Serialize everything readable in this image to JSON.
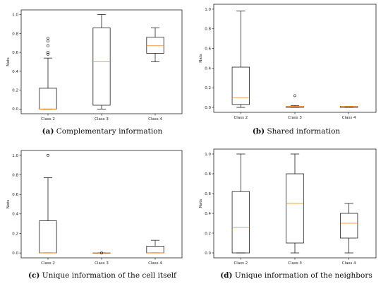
{
  "chart_data": [
    {
      "type": "box",
      "panel": "a",
      "caption_letter": "(a)",
      "caption_text": "Complementary information",
      "ylabel": "Nats",
      "ylim": [
        -0.05,
        1.05
      ],
      "yticks": [
        0.0,
        0.2,
        0.4,
        0.6,
        0.8,
        1.0
      ],
      "ytick_labels": [
        "0.0",
        "0.2",
        "0.4",
        "0.6",
        "0.8",
        "1.0"
      ],
      "categories": [
        "Class 2",
        "Class 3",
        "Class 4"
      ],
      "boxes": [
        {
          "whislo": 0.0,
          "q1": 0.0,
          "med": 0.0,
          "q3": 0.22,
          "whishi": 0.54,
          "fliers": [
            0.58,
            0.6,
            0.67,
            0.72,
            0.75
          ]
        },
        {
          "whislo": 0.0,
          "q1": 0.04,
          "med": 0.5,
          "q3": 0.86,
          "whishi": 1.0,
          "fliers": []
        },
        {
          "whislo": 0.5,
          "q1": 0.59,
          "med": 0.67,
          "q3": 0.76,
          "whishi": 0.86,
          "fliers": []
        }
      ]
    },
    {
      "type": "box",
      "panel": "b",
      "caption_letter": "(b)",
      "caption_text": "Shared information",
      "ylabel": "Nats",
      "ylim": [
        -0.05,
        1.05
      ],
      "yticks": [
        0.0,
        0.2,
        0.4,
        0.6,
        0.8,
        1.0
      ],
      "ytick_labels": [
        "0.0",
        "0.2",
        "0.4",
        "0.6",
        "0.8",
        "1.0"
      ],
      "categories": [
        "Class 2",
        "Class 3",
        "Class 4"
      ],
      "boxes": [
        {
          "whislo": 0.0,
          "q1": 0.03,
          "med": 0.1,
          "q3": 0.41,
          "whishi": 0.98,
          "fliers": []
        },
        {
          "whislo": 0.0,
          "q1": 0.0,
          "med": 0.01,
          "q3": 0.01,
          "whishi": 0.02,
          "fliers": [
            0.12
          ]
        },
        {
          "whislo": 0.0,
          "q1": 0.0,
          "med": 0.01,
          "q3": 0.01,
          "whishi": 0.01,
          "fliers": []
        }
      ]
    },
    {
      "type": "box",
      "panel": "c",
      "caption_letter": "(c)",
      "caption_text": "Unique information of the cell itself",
      "ylabel": "Nats",
      "ylim": [
        -0.05,
        1.05
      ],
      "yticks": [
        0.0,
        0.2,
        0.4,
        0.6,
        0.8,
        1.0
      ],
      "ytick_labels": [
        "0.0",
        "0.2",
        "0.4",
        "0.6",
        "0.8",
        "1.0"
      ],
      "categories": [
        "Class 2",
        "Class 3",
        "Class 4"
      ],
      "boxes": [
        {
          "whislo": 0.0,
          "q1": 0.0,
          "med": 0.0,
          "q3": 0.33,
          "whishi": 0.77,
          "fliers": [
            1.0
          ]
        },
        {
          "whislo": 0.0,
          "q1": 0.0,
          "med": 0.0,
          "q3": 0.0,
          "whishi": 0.0,
          "fliers": [
            0.0
          ]
        },
        {
          "whislo": 0.0,
          "q1": 0.0,
          "med": 0.0,
          "q3": 0.07,
          "whishi": 0.13,
          "fliers": []
        }
      ]
    },
    {
      "type": "box",
      "panel": "d",
      "caption_letter": "(d)",
      "caption_text": "Unique information of the neighbors",
      "ylabel": "Nats",
      "ylim": [
        -0.05,
        1.05
      ],
      "yticks": [
        0.0,
        0.2,
        0.4,
        0.6,
        0.8,
        1.0
      ],
      "ytick_labels": [
        "0.0",
        "0.2",
        "0.4",
        "0.6",
        "0.8",
        "1.0"
      ],
      "categories": [
        "Class 2",
        "Class 3",
        "Class 4"
      ],
      "boxes": [
        {
          "whislo": 0.0,
          "q1": 0.0,
          "med": 0.26,
          "q3": 0.62,
          "whishi": 1.0,
          "fliers": []
        },
        {
          "whislo": 0.0,
          "q1": 0.1,
          "med": 0.5,
          "q3": 0.8,
          "whishi": 1.0,
          "fliers": []
        },
        {
          "whislo": 0.0,
          "q1": 0.15,
          "med": 0.3,
          "q3": 0.4,
          "whishi": 0.5,
          "fliers": []
        }
      ]
    }
  ],
  "colors": {
    "median": "#ff7f0e",
    "box": "#000000",
    "flier": "#000000",
    "frame": "#000000"
  }
}
